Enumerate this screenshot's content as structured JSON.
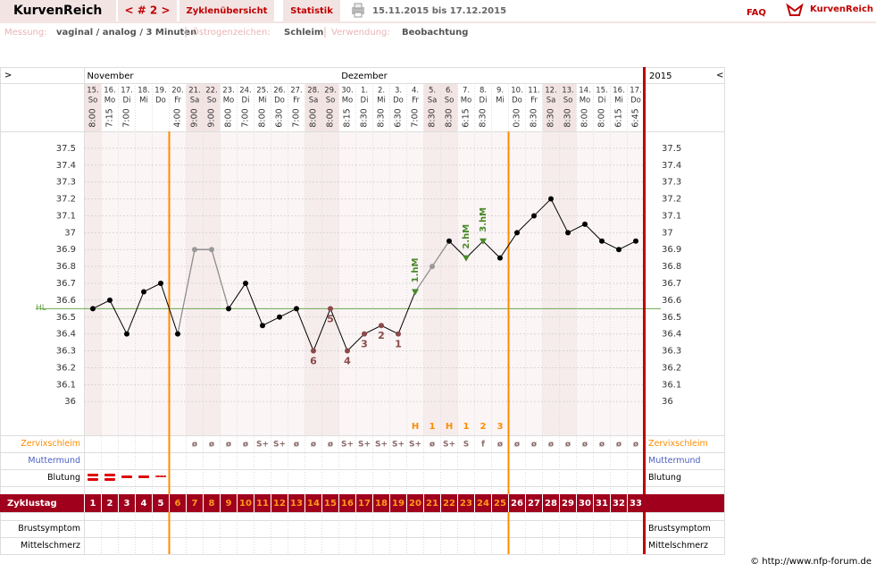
{
  "header": {
    "logo": "KurvenReich",
    "cycle_nav": "< # 2 >",
    "tabs": [
      "Zyklenübersicht",
      "Statistik"
    ],
    "period": "15.11.2015 bis 17.12.2015",
    "faq": "FAQ",
    "brand": "KurvenReich"
  },
  "settings": {
    "measure_label": "Messung:",
    "measure": "vaginal / analog / 3 Minuten",
    "sign_label": "Östrogenzeichen:",
    "sign": "Schleim",
    "use_label": "Verwendung:",
    "use": "Beobachtung"
  },
  "chart_data": {
    "type": "line",
    "nav_prev": ">",
    "nav_next": "<",
    "months": [
      "November",
      "Dezember"
    ],
    "year": "2015",
    "categories": [
      "15.",
      "16.",
      "17.",
      "18.",
      "19.",
      "20.",
      "21.",
      "22.",
      "23.",
      "24.",
      "25.",
      "26.",
      "27.",
      "28.",
      "29.",
      "30.",
      "1.",
      "2.",
      "3.",
      "4.",
      "5.",
      "6.",
      "7.",
      "8.",
      "9.",
      "10.",
      "11.",
      "12.",
      "13.",
      "14.",
      "15.",
      "16.",
      "17."
    ],
    "weekdays": [
      "So",
      "Mo",
      "Di",
      "Mi",
      "Do",
      "Fr",
      "Sa",
      "So",
      "Mo",
      "Di",
      "Mi",
      "Do",
      "Fr",
      "Sa",
      "So",
      "Mo",
      "Di",
      "Mi",
      "Do",
      "Fr",
      "Sa",
      "So",
      "Mo",
      "Di",
      "Mi",
      "Do",
      "Fr",
      "Sa",
      "So",
      "Mo",
      "Di",
      "Mi",
      "Do"
    ],
    "times": [
      "8:00",
      "7:15",
      "7:00",
      null,
      null,
      "4:00",
      "9:00",
      "9:00",
      "8:00",
      "7:00",
      "8:00",
      "6:30",
      "7:00",
      "8:00",
      "8:00",
      "8:15",
      "8:30",
      "8:30",
      "6:30",
      "7:00",
      "8:30",
      "8:30",
      "6:15",
      "8:30",
      null,
      "0:30",
      "8:30",
      "8:30",
      "8:30",
      "8:00",
      "8:00",
      "6:15",
      "6:45"
    ],
    "values": [
      36.55,
      36.6,
      36.4,
      36.65,
      36.7,
      36.4,
      36.9,
      36.9,
      36.55,
      36.7,
      36.45,
      36.5,
      36.55,
      36.3,
      36.55,
      36.3,
      36.4,
      36.45,
      36.4,
      36.65,
      36.8,
      36.95,
      36.85,
      36.95,
      36.85,
      37.0,
      37.1,
      37.2,
      37.0,
      37.05,
      36.95,
      36.9,
      36.95
    ],
    "line_color": "#000000",
    "point_colors": [
      "#000000",
      "#000000",
      "#000000",
      "#000000",
      "#000000",
      "#000000",
      "#999999",
      "#999999",
      "#000000",
      "#000000",
      "#000000",
      "#000000",
      "#000000",
      "#8b4a4a",
      "#8b4a4a",
      "#8b4a4a",
      "#8b4a4a",
      "#8b4a4a",
      "#8b4a4a",
      "#4a8a2a",
      "#999999",
      "#000000",
      "#4a8a2a",
      "#4a8a2a",
      "#000000",
      "#000000",
      "#000000",
      "#000000",
      "#000000",
      "#000000",
      "#000000",
      "#000000",
      "#000000"
    ],
    "point_labels": [
      null,
      null,
      null,
      null,
      null,
      null,
      null,
      null,
      null,
      null,
      null,
      null,
      null,
      "6",
      "5",
      "4",
      "3",
      "2",
      "1",
      null,
      null,
      null,
      null,
      null,
      null,
      null,
      null,
      null,
      null,
      null,
      null,
      null,
      null
    ],
    "hm_labels": [
      null,
      null,
      null,
      null,
      null,
      null,
      null,
      null,
      null,
      null,
      null,
      null,
      null,
      null,
      null,
      null,
      null,
      null,
      null,
      "1.hM",
      null,
      null,
      "2.hM",
      "3.hM",
      null,
      null,
      null,
      null,
      null,
      null,
      null,
      null,
      null
    ],
    "hl": 36.55,
    "hl_label": "HL",
    "hl_color": "#6aa84f",
    "ylim": [
      35.8,
      37.6
    ],
    "yticks": [
      36,
      36.1,
      36.2,
      36.3,
      36.4,
      36.5,
      36.6,
      36.7,
      36.8,
      36.9,
      37,
      37.1,
      37.2,
      37.3,
      37.4,
      37.5
    ],
    "grid": true,
    "cervix_label": "Zervixschleim",
    "os_label": "Muttermund",
    "bleeding_label": "Blutung",
    "cycle_label": "Zyklustag",
    "breast_label": "Brustsymptom",
    "pain_label": "Mittelschmerz",
    "cervix_top": [
      null,
      null,
      null,
      null,
      null,
      null,
      null,
      null,
      null,
      null,
      null,
      null,
      null,
      null,
      null,
      null,
      null,
      null,
      null,
      "H",
      "1",
      "H",
      "1",
      "2",
      "3",
      null,
      null,
      null,
      null,
      null,
      null,
      null,
      null
    ],
    "cervix": [
      null,
      null,
      null,
      null,
      null,
      null,
      "ø",
      "ø",
      "ø",
      "ø",
      "S+",
      "S+",
      "ø",
      "ø",
      "ø",
      "S+",
      "S+",
      "S+",
      "S+",
      "S+",
      "ø",
      "S+",
      "S",
      "f",
      "ø",
      "ø",
      "ø",
      "ø",
      "ø",
      "ø",
      "ø",
      "ø",
      "ø"
    ],
    "bleeding": [
      3,
      3,
      2,
      2,
      1
    ],
    "cycle_days": [
      1,
      2,
      3,
      4,
      5,
      6,
      7,
      8,
      9,
      10,
      11,
      12,
      13,
      14,
      15,
      16,
      17,
      18,
      19,
      20,
      21,
      22,
      23,
      24,
      25,
      26,
      27,
      28,
      29,
      30,
      31,
      32,
      33
    ],
    "phase_boundaries": [
      5,
      25
    ]
  },
  "footer": "© http://www.nfp-forum.de"
}
